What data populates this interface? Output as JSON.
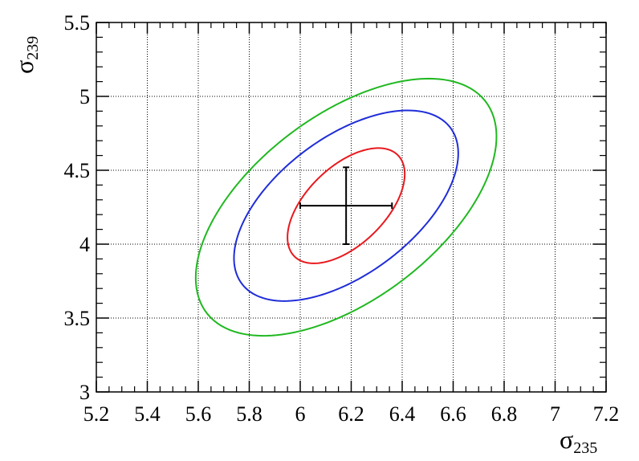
{
  "chart_data": {
    "type": "contour",
    "title": "",
    "xlabel": {
      "symbol": "σ",
      "subscript": "235"
    },
    "ylabel": {
      "symbol": "σ",
      "subscript": "239"
    },
    "xlim": [
      5.2,
      7.2
    ],
    "ylim": [
      3.0,
      5.5
    ],
    "grid": true,
    "x_ticks": [
      "5.2",
      "5.4",
      "5.6",
      "5.8",
      "6",
      "6.2",
      "6.4",
      "6.6",
      "6.8",
      "7",
      "7.2"
    ],
    "y_ticks": [
      "3",
      "3.5",
      "4",
      "4.5",
      "5",
      "5.5"
    ],
    "best_fit": {
      "x": 6.18,
      "y": 4.26,
      "x_err": [
        6.0,
        6.36
      ],
      "y_err": [
        4.0,
        4.52
      ],
      "color": "#000000"
    },
    "contours": [
      {
        "name": "inner",
        "color": "#e8191e",
        "cx": 6.18,
        "cy": 4.26,
        "xmin": 5.98,
        "xmax": 6.44,
        "ymin": 3.87,
        "ymax": 4.65
      },
      {
        "name": "middle",
        "color": "#1f2dd8",
        "cx": 6.18,
        "cy": 4.26,
        "xmin": 5.74,
        "xmax": 6.62,
        "ymin": 3.61,
        "ymax": 4.9
      },
      {
        "name": "outer",
        "color": "#20b820",
        "cx": 6.18,
        "cy": 4.25,
        "xmin": 5.58,
        "xmax": 6.76,
        "ymin": 3.38,
        "ymax": 5.12
      }
    ]
  }
}
